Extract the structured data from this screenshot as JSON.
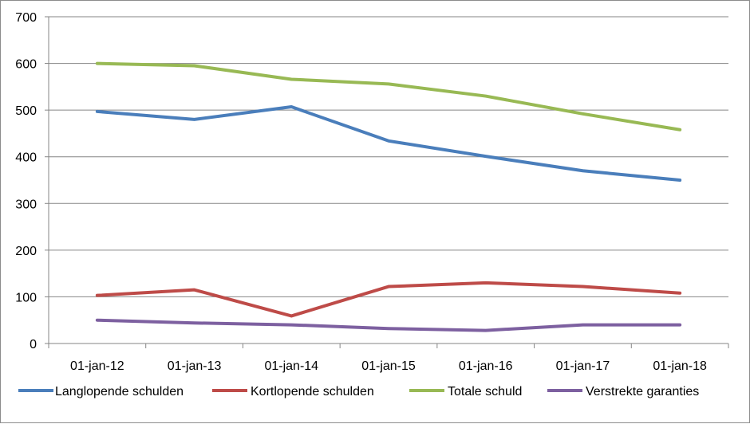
{
  "chart_data": {
    "type": "line",
    "title": "",
    "xlabel": "",
    "ylabel": "",
    "categories": [
      "01-jan-12",
      "01-jan-13",
      "01-jan-14",
      "01-jan-15",
      "01-jan-16",
      "01-jan-17",
      "01-jan-18"
    ],
    "ylim": [
      0,
      700
    ],
    "yticks": [
      0,
      100,
      200,
      300,
      400,
      500,
      600,
      700
    ],
    "grid": "horizontal",
    "legend_position": "bottom",
    "series": [
      {
        "name": "Langlopende schulden",
        "color": "#4a7ebb",
        "values": [
          497,
          480,
          507,
          434,
          401,
          370,
          350
        ]
      },
      {
        "name": "Kortlopende schulden",
        "color": "#be4b48",
        "values": [
          103,
          115,
          59,
          122,
          130,
          122,
          108
        ]
      },
      {
        "name": "Totale schuld",
        "color": "#98b954",
        "values": [
          600,
          595,
          566,
          556,
          530,
          492,
          458
        ]
      },
      {
        "name": "Verstrekte garanties",
        "color": "#7d60a0",
        "values": [
          50,
          44,
          40,
          32,
          28,
          40,
          40
        ]
      }
    ]
  }
}
